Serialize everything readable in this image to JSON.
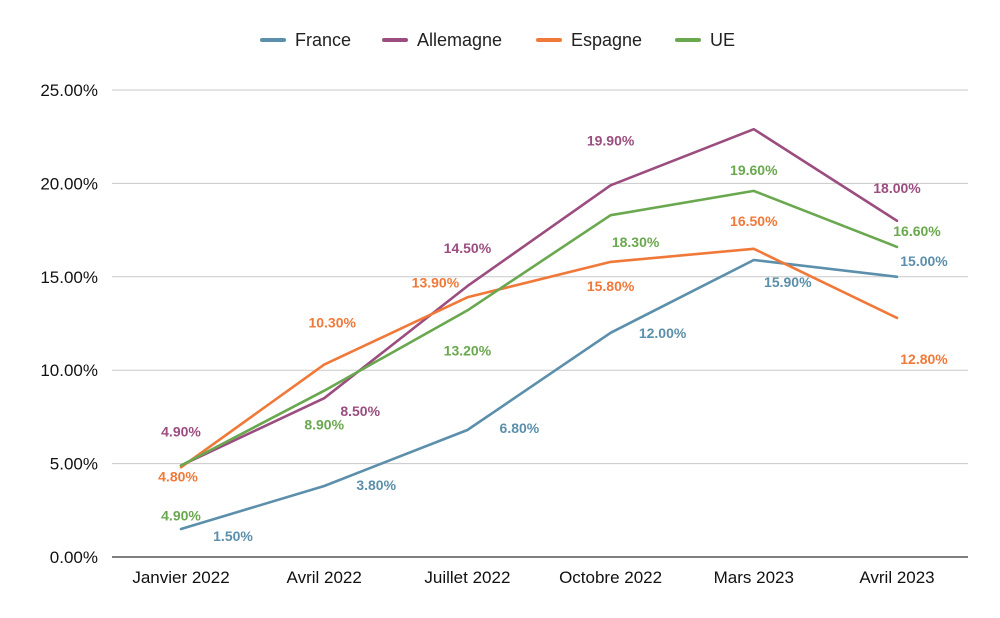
{
  "chart_data": {
    "type": "line",
    "categories": [
      "Janvier 2022",
      "Avril 2022",
      "Juillet 2022",
      "Octobre 2022",
      "Mars 2023",
      "Avril 2023"
    ],
    "series": [
      {
        "name": "France",
        "color": "#5b8fab",
        "values": [
          1.5,
          3.8,
          6.8,
          12.0,
          15.9,
          15.0
        ],
        "labels": [
          "1.50%",
          "3.80%",
          "6.80%",
          "12.00%",
          "15.90%",
          "15.00%"
        ]
      },
      {
        "name": "Allemagne",
        "color": "#9b4d7f",
        "values": [
          4.9,
          8.5,
          14.5,
          19.9,
          22.9,
          18.0
        ],
        "labels": [
          "4.90%",
          "8.50%",
          "14.50%",
          "19.90%",
          "",
          "18.00%"
        ]
      },
      {
        "name": "Espagne",
        "color": "#f0793a",
        "values": [
          4.8,
          10.3,
          13.9,
          15.8,
          16.5,
          12.8
        ],
        "labels": [
          "4.80%",
          "10.30%",
          "13.90%",
          "15.80%",
          "16.50%",
          "12.80%"
        ]
      },
      {
        "name": "UE",
        "color": "#6aa84f",
        "values": [
          4.9,
          8.9,
          13.2,
          18.3,
          19.6,
          16.6
        ],
        "labels": [
          "4.90%",
          "8.90%",
          "13.20%",
          "18.30%",
          "19.60%",
          "16.60%"
        ]
      }
    ],
    "yticks": [
      "0.00%",
      "5.00%",
      "10.00%",
      "15.00%",
      "20.00%",
      "25.00%"
    ],
    "ylim": [
      0,
      25
    ],
    "grid": true,
    "legend": "top-center"
  }
}
